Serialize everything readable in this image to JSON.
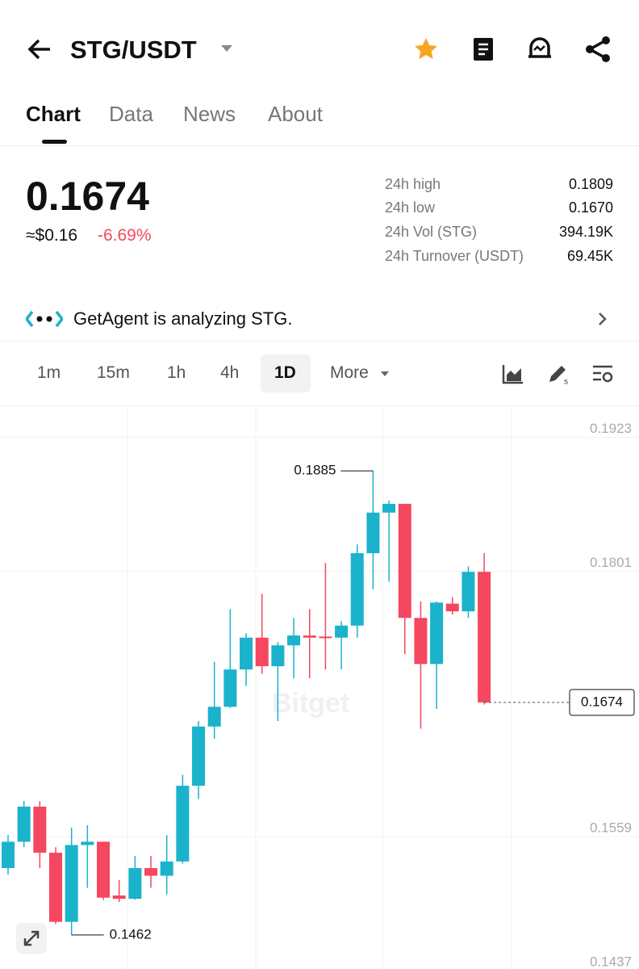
{
  "header": {
    "pair": "STG/USDT"
  },
  "tabs": [
    "Chart",
    "Data",
    "News",
    "About"
  ],
  "price": {
    "last": "0.1674",
    "usd": "≈$0.16",
    "change": "-6.69%"
  },
  "stats": [
    {
      "label": "24h high",
      "value": "0.1809"
    },
    {
      "label": "24h low",
      "value": "0.1670"
    },
    {
      "label": "24h Vol (STG)",
      "value": "394.19K"
    },
    {
      "label": "24h Turnover (USDT)",
      "value": "69.45K"
    }
  ],
  "agent": "GetAgent is analyzing STG.",
  "intervals": [
    "1m",
    "15m",
    "1h",
    "4h",
    "1D",
    "More"
  ],
  "chart_data": {
    "type": "candlestick",
    "watermark": "Bitget",
    "ylim": [
      0.1431,
      0.1944
    ],
    "yticks": [
      0.1923,
      0.1801,
      0.1559,
      0.1437
    ],
    "up_color": "#1ab3cb",
    "down_color": "#f5475f",
    "open": [
      0.1523,
      0.1547,
      0.1579,
      0.1537,
      0.1474,
      0.1544,
      0.1547,
      0.1498,
      0.1495,
      0.1523,
      0.1516,
      0.1529,
      0.1598,
      0.1652,
      0.167,
      0.1704,
      0.1733,
      0.1707,
      0.1726,
      0.1735,
      0.1734,
      0.1733,
      0.1744,
      0.181,
      0.1847,
      0.1855,
      0.1751,
      0.1709,
      0.1764,
      0.1757,
      0.1793
    ],
    "high": [
      0.1553,
      0.1584,
      0.1584,
      0.1542,
      0.156,
      0.1562,
      0.1547,
      0.1512,
      0.1534,
      0.1534,
      0.1553,
      0.1608,
      0.1657,
      0.1711,
      0.1759,
      0.1737,
      0.1773,
      0.1729,
      0.1751,
      0.1759,
      0.1801,
      0.1748,
      0.1818,
      0.1885,
      0.1858,
      0.1855,
      0.1766,
      0.1766,
      0.177,
      0.1798,
      0.181
    ],
    "low": [
      0.1517,
      0.1542,
      0.1523,
      0.1472,
      0.1462,
      0.1505,
      0.1494,
      0.1492,
      0.1494,
      0.1505,
      0.1499,
      0.1527,
      0.1586,
      0.1641,
      0.1669,
      0.1689,
      0.17,
      0.1657,
      0.1696,
      0.1696,
      0.1704,
      0.1704,
      0.1733,
      0.1777,
      0.1784,
      0.1718,
      0.165,
      0.1668,
      0.1754,
      0.1751,
      0.1672
    ],
    "close": [
      0.1547,
      0.1579,
      0.1537,
      0.1474,
      0.1544,
      0.1547,
      0.1496,
      0.1495,
      0.1523,
      0.1516,
      0.1529,
      0.1598,
      0.1652,
      0.167,
      0.1704,
      0.1733,
      0.1707,
      0.1726,
      0.1735,
      0.1733,
      0.1733,
      0.1744,
      0.181,
      0.1847,
      0.1855,
      0.1751,
      0.1709,
      0.1765,
      0.1757,
      0.1793,
      0.1674
    ],
    "high_label": "0.1885",
    "low_label": "0.1462",
    "last_label": "0.1674"
  }
}
